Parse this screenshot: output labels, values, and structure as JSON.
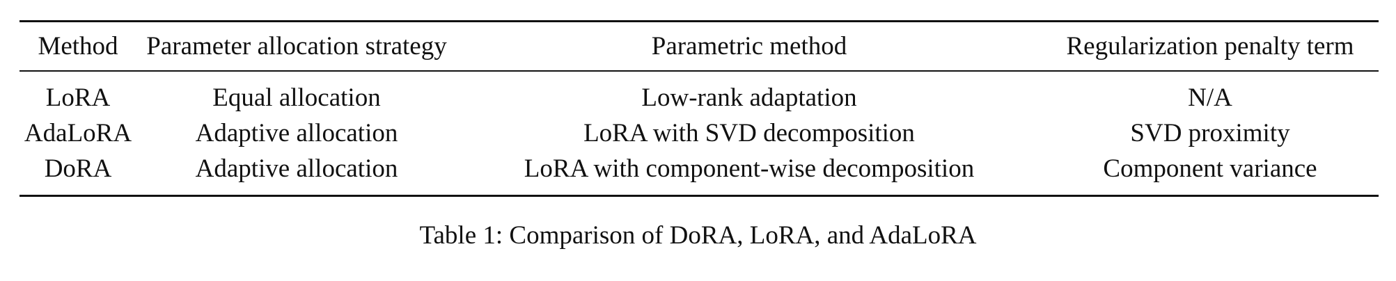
{
  "table": {
    "headers": [
      "Method",
      "Parameter allocation strategy",
      "Parametric method",
      "Regularization penalty term"
    ],
    "rows": [
      [
        "LoRA",
        "Equal allocation",
        "Low-rank adaptation",
        "N/A"
      ],
      [
        "AdaLoRA",
        "Adaptive allocation",
        "LoRA with SVD decomposition",
        "SVD proximity"
      ],
      [
        "DoRA",
        "Adaptive allocation",
        "LoRA with component-wise decomposition",
        "Component variance"
      ]
    ]
  },
  "caption": "Table 1: Comparison of DoRA, LoRA, and AdaLoRA"
}
